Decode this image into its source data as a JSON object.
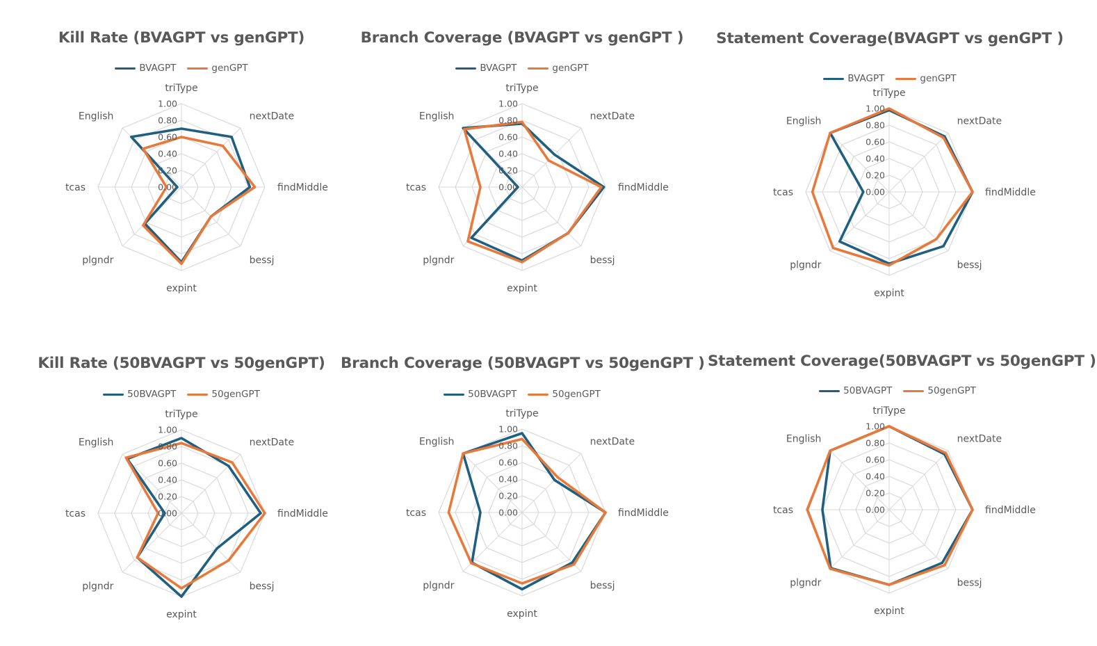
{
  "colors": {
    "series_a": "#1f5f7f",
    "series_b": "#e8793a",
    "grid": "#d9d9d9",
    "text": "#595959"
  },
  "chart_data": [
    {
      "type": "radar",
      "title": "Kill Rate (BVAGPT vs genGPT)",
      "categories": [
        "triType",
        "nextDate",
        "findMiddle",
        "bessj",
        "expint",
        "plgndr",
        "tcas",
        "English"
      ],
      "ticks": [
        "0.00",
        "0.20",
        "0.40",
        "0.60",
        "0.80",
        "1.00"
      ],
      "rmax": 1.0,
      "series": [
        {
          "name": "BVAGPT",
          "values": [
            0.7,
            0.85,
            0.82,
            0.5,
            0.9,
            0.62,
            0.05,
            0.85
          ]
        },
        {
          "name": "genGPT",
          "values": [
            0.6,
            0.7,
            0.88,
            0.5,
            0.92,
            0.65,
            0.18,
            0.65
          ]
        }
      ]
    },
    {
      "type": "radar",
      "title": "Branch Coverage (BVAGPT vs genGPT )",
      "categories": [
        "triType",
        "nextDate",
        "findMiddle",
        "bessj",
        "expint",
        "plgndr",
        "tcas",
        "English"
      ],
      "ticks": [
        "0.00",
        "0.20",
        "0.40",
        "0.60",
        "0.80",
        "1.00"
      ],
      "rmax": 1.0,
      "series": [
        {
          "name": "BVAGPT",
          "values": [
            0.76,
            0.55,
            0.98,
            0.78,
            0.88,
            0.86,
            0.05,
            1.0
          ]
        },
        {
          "name": "genGPT",
          "values": [
            0.78,
            0.45,
            0.95,
            0.78,
            0.9,
            0.92,
            0.5,
            0.98
          ]
        }
      ]
    },
    {
      "type": "radar",
      "title": "Statement Coverage(BVAGPT vs genGPT )",
      "categories": [
        "triType",
        "nextDate",
        "findMiddle",
        "bessj",
        "expint",
        "plgndr",
        "tcas",
        "English"
      ],
      "ticks": [
        "0.00",
        "0.20",
        "0.40",
        "0.60",
        "0.80",
        "1.00"
      ],
      "rmax": 1.0,
      "series": [
        {
          "name": "BVAGPT",
          "values": [
            0.98,
            0.94,
            1.0,
            0.92,
            0.86,
            0.84,
            0.31,
            1.0
          ]
        },
        {
          "name": "genGPT",
          "values": [
            1.0,
            0.92,
            1.0,
            0.8,
            0.88,
            0.95,
            0.92,
            1.0
          ]
        }
      ]
    },
    {
      "type": "radar",
      "title": "Kill Rate (50BVAGPT vs 50genGPT)",
      "categories": [
        "triType",
        "nextDate",
        "findMiddle",
        "bessj",
        "expint",
        "plgndr",
        "tcas",
        "English"
      ],
      "ticks": [
        "0.00",
        "0.20",
        "0.40",
        "0.60",
        "0.80",
        "1.00"
      ],
      "rmax": 1.0,
      "series": [
        {
          "name": "50BVAGPT",
          "values": [
            0.9,
            0.8,
            0.95,
            0.6,
            1.0,
            0.75,
            0.2,
            0.92
          ]
        },
        {
          "name": "50genGPT",
          "values": [
            0.84,
            0.86,
            1.0,
            0.8,
            0.9,
            0.75,
            0.28,
            0.94
          ]
        }
      ]
    },
    {
      "type": "radar",
      "title": "Branch Coverage (50BVAGPT vs 50genGPT )",
      "categories": [
        "triType",
        "nextDate",
        "findMiddle",
        "bessj",
        "expint",
        "plgndr",
        "tcas",
        "English"
      ],
      "ticks": [
        "0.00",
        "0.20",
        "0.40",
        "0.60",
        "0.80",
        "1.00"
      ],
      "rmax": 1.0,
      "series": [
        {
          "name": "50BVAGPT",
          "values": [
            0.95,
            0.55,
            1.0,
            0.85,
            0.92,
            0.85,
            0.5,
            1.0
          ]
        },
        {
          "name": "50genGPT",
          "values": [
            0.88,
            0.6,
            1.0,
            0.88,
            0.85,
            0.86,
            0.88,
            1.0
          ]
        }
      ]
    },
    {
      "type": "radar",
      "title": "Statement Coverage(50BVAGPT vs 50genGPT )",
      "categories": [
        "triType",
        "nextDate",
        "findMiddle",
        "bessj",
        "expint",
        "plgndr",
        "tcas",
        "English"
      ],
      "ticks": [
        "0.00",
        "0.20",
        "0.40",
        "0.60",
        "0.80",
        "1.00"
      ],
      "rmax": 1.0,
      "series": [
        {
          "name": "50BVAGPT",
          "values": [
            1.0,
            0.94,
            1.0,
            0.9,
            0.9,
            0.99,
            0.8,
            1.0
          ]
        },
        {
          "name": "50genGPT",
          "values": [
            1.0,
            0.96,
            1.0,
            0.94,
            0.9,
            1.0,
            0.98,
            1.0
          ]
        }
      ]
    }
  ]
}
